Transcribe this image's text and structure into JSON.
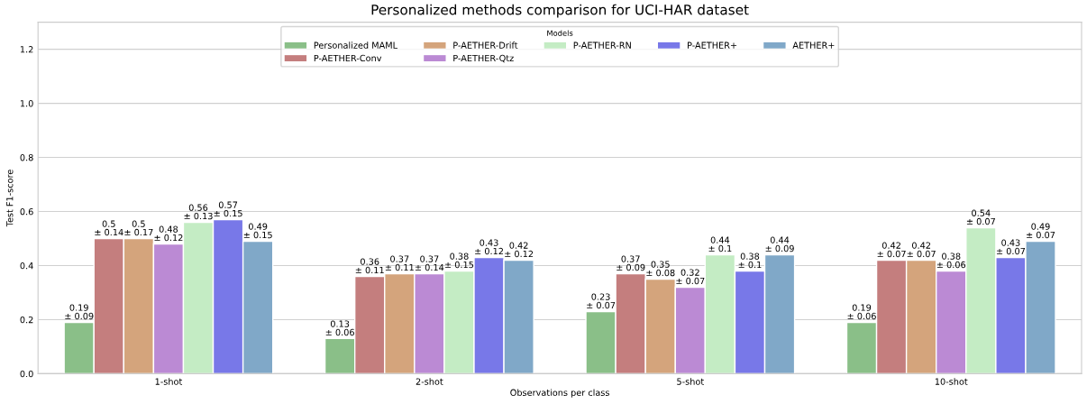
{
  "chart_data": {
    "type": "bar",
    "title": "Personalized methods comparison for UCI-HAR dataset",
    "xlabel": "Observations per class",
    "ylabel": "Test F1-score",
    "legend_title": "Models",
    "categories": [
      "1-shot",
      "2-shot",
      "5-shot",
      "10-shot"
    ],
    "series": [
      {
        "name": "Personalized MAML",
        "color": "#8abf88",
        "values": [
          0.19,
          0.13,
          0.23,
          0.19
        ],
        "value_labels": [
          "0.19\n± 0.09",
          "0.13\n± 0.06",
          "0.23\n± 0.07",
          "0.19\n± 0.06"
        ]
      },
      {
        "name": "P-AETHER-Conv",
        "color": "#c47e7e",
        "values": [
          0.5,
          0.36,
          0.37,
          0.42
        ],
        "value_labels": [
          "0.5\n± 0.14",
          "0.36\n± 0.11",
          "0.37\n± 0.09",
          "0.42\n± 0.07"
        ]
      },
      {
        "name": "P-AETHER-Drift",
        "color": "#d4a47c",
        "values": [
          0.5,
          0.37,
          0.35,
          0.42
        ],
        "value_labels": [
          "0.5\n± 0.17",
          "0.37\n± 0.11",
          "0.35\n± 0.08",
          "0.42\n± 0.07"
        ]
      },
      {
        "name": "P-AETHER-Qtz",
        "color": "#bb8ad4",
        "values": [
          0.48,
          0.37,
          0.32,
          0.38
        ],
        "value_labels": [
          "0.48\n± 0.12",
          "0.37\n± 0.14",
          "0.32\n± 0.07",
          "0.38\n± 0.06"
        ]
      },
      {
        "name": "P-AETHER-RN",
        "color": "#c4ecc4",
        "values": [
          0.56,
          0.38,
          0.44,
          0.54
        ],
        "value_labels": [
          "0.56\n± 0.13",
          "0.38\n± 0.15",
          "0.44\n± 0.1",
          "0.54\n± 0.07"
        ]
      },
      {
        "name": "P-AETHER+",
        "color": "#7878e8",
        "values": [
          0.57,
          0.43,
          0.38,
          0.43
        ],
        "value_labels": [
          "0.57\n± 0.15",
          "0.43\n± 0.12",
          "0.38\n± 0.1",
          "0.43\n± 0.07"
        ]
      },
      {
        "name": "AETHER+",
        "color": "#80a8c8",
        "values": [
          0.49,
          0.42,
          0.44,
          0.49
        ],
        "value_labels": [
          "0.49\n± 0.15",
          "0.42\n± 0.12",
          "0.44\n± 0.09",
          "0.49\n± 0.07"
        ]
      }
    ],
    "ylim": [
      0,
      1.3
    ],
    "yticks": [
      {
        "value": 0,
        "label": "0.0"
      },
      0.2,
      0.4,
      0.6,
      0.8,
      {
        "value": 1,
        "label": "1.0"
      },
      1.2
    ],
    "grid": "y",
    "legend": "top"
  }
}
